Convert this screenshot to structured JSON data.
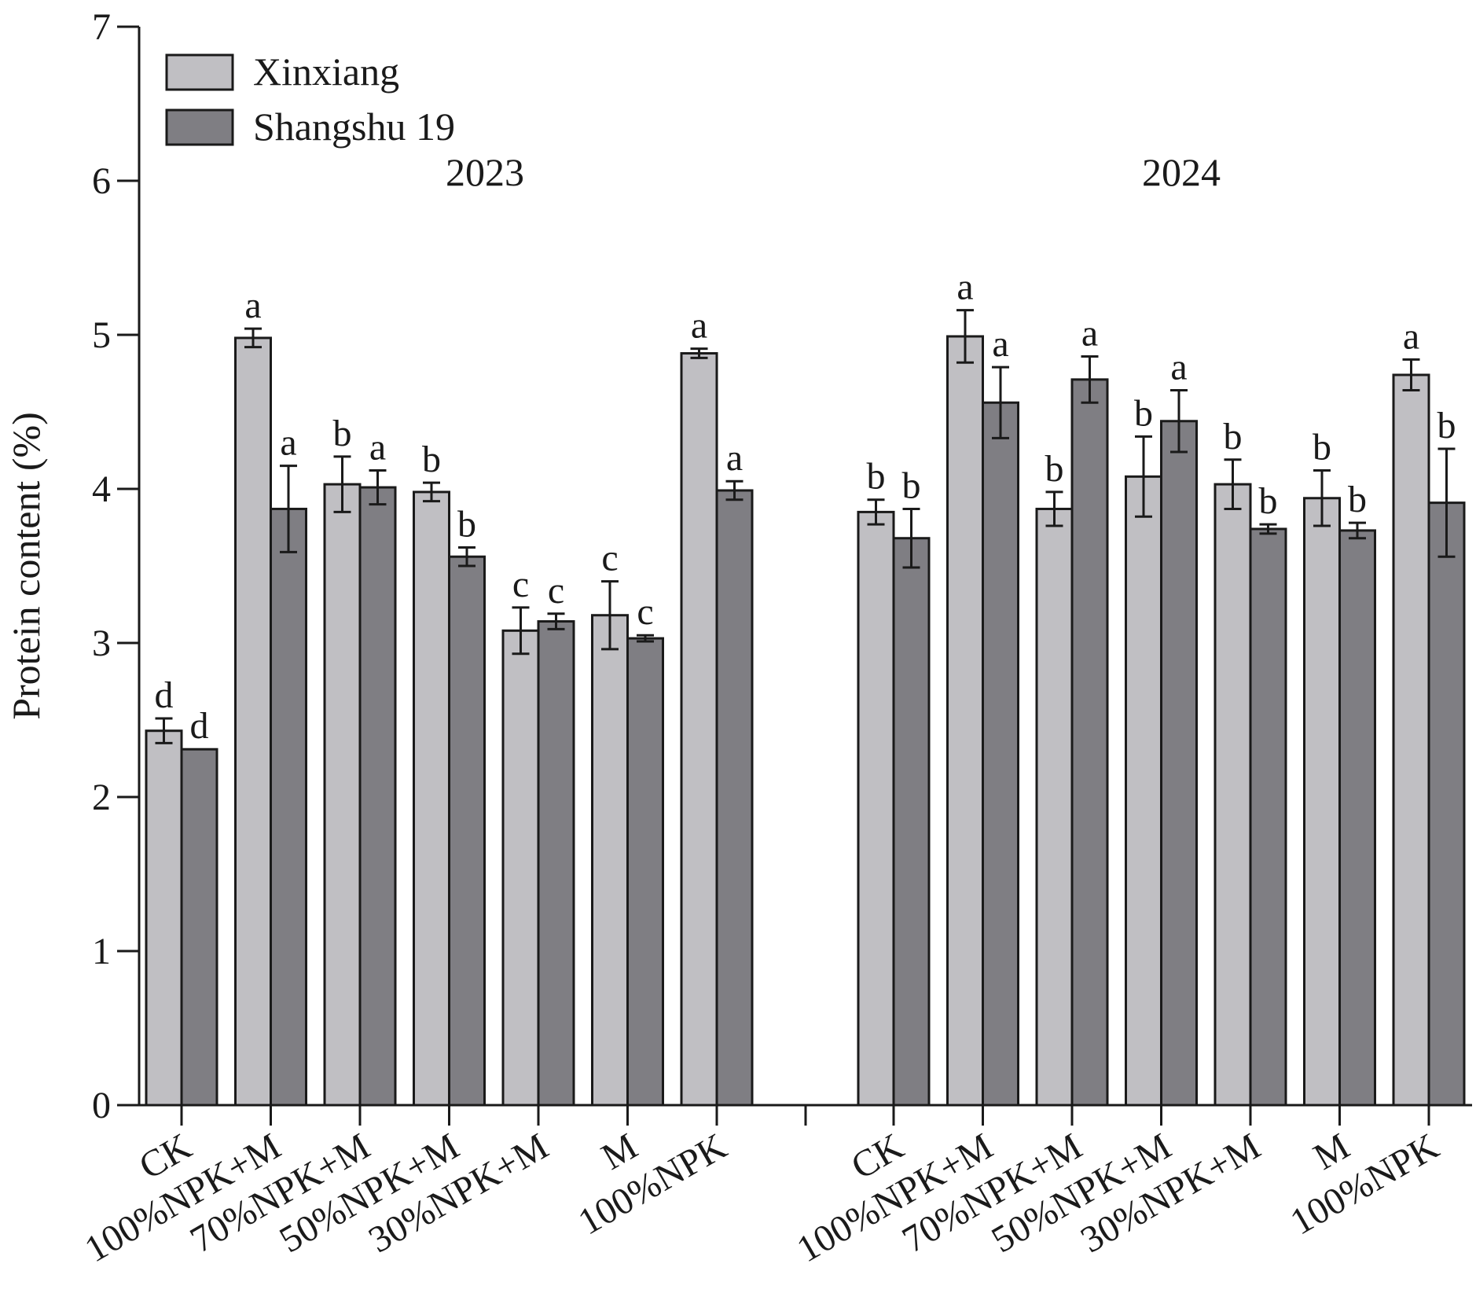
{
  "chart_data": {
    "type": "bar",
    "ylabel": "Protein content (%)",
    "ylim": [
      0,
      7
    ],
    "yticks": [
      0,
      1,
      2,
      3,
      4,
      5,
      6,
      7
    ],
    "legend": {
      "placement": "top-left",
      "entries": [
        {
          "name": "Xinxiang",
          "color": "#c0bfc3"
        },
        {
          "name": "Shangshu 19",
          "color": "#7f7e83"
        }
      ]
    },
    "groups": [
      {
        "year": "2023",
        "categories": [
          "CK",
          "100%NPK+M",
          "70%NPK+M",
          "50%NPK+M",
          "30%NPK+M",
          "M",
          "100%NPK"
        ],
        "series": [
          {
            "name": "Xinxiang",
            "values": [
              2.43,
              4.98,
              4.03,
              3.98,
              3.08,
              3.18,
              4.88
            ],
            "errors": [
              0.08,
              0.06,
              0.18,
              0.06,
              0.15,
              0.22,
              0.03
            ],
            "letters": [
              "d",
              "a",
              "b",
              "b",
              "c",
              "c",
              "a"
            ]
          },
          {
            "name": "Shangshu 19",
            "values": [
              2.31,
              3.87,
              4.01,
              3.56,
              3.14,
              3.03,
              3.99
            ],
            "errors": [
              0.0,
              0.28,
              0.11,
              0.06,
              0.05,
              0.02,
              0.06
            ],
            "letters": [
              "d",
              "a",
              "a",
              "b",
              "c",
              "c",
              "a"
            ]
          }
        ]
      },
      {
        "year": "2024",
        "categories": [
          "CK",
          "100%NPK+M",
          "70%NPK+M",
          "50%NPK+M",
          "30%NPK+M",
          "M",
          "100%NPK"
        ],
        "series": [
          {
            "name": "Xinxiang",
            "values": [
              3.85,
              4.99,
              3.87,
              4.08,
              4.03,
              3.94,
              4.74
            ],
            "errors": [
              0.08,
              0.17,
              0.11,
              0.26,
              0.16,
              0.18,
              0.1
            ],
            "letters": [
              "b",
              "a",
              "b",
              "b",
              "b",
              "b",
              "a"
            ]
          },
          {
            "name": "Shangshu 19",
            "values": [
              3.68,
              4.56,
              4.71,
              4.44,
              3.74,
              3.73,
              3.91
            ],
            "errors": [
              0.19,
              0.23,
              0.15,
              0.2,
              0.03,
              0.05,
              0.35
            ],
            "letters": [
              "b",
              "a",
              "a",
              "a",
              "b",
              "b",
              "b"
            ]
          }
        ]
      }
    ]
  }
}
